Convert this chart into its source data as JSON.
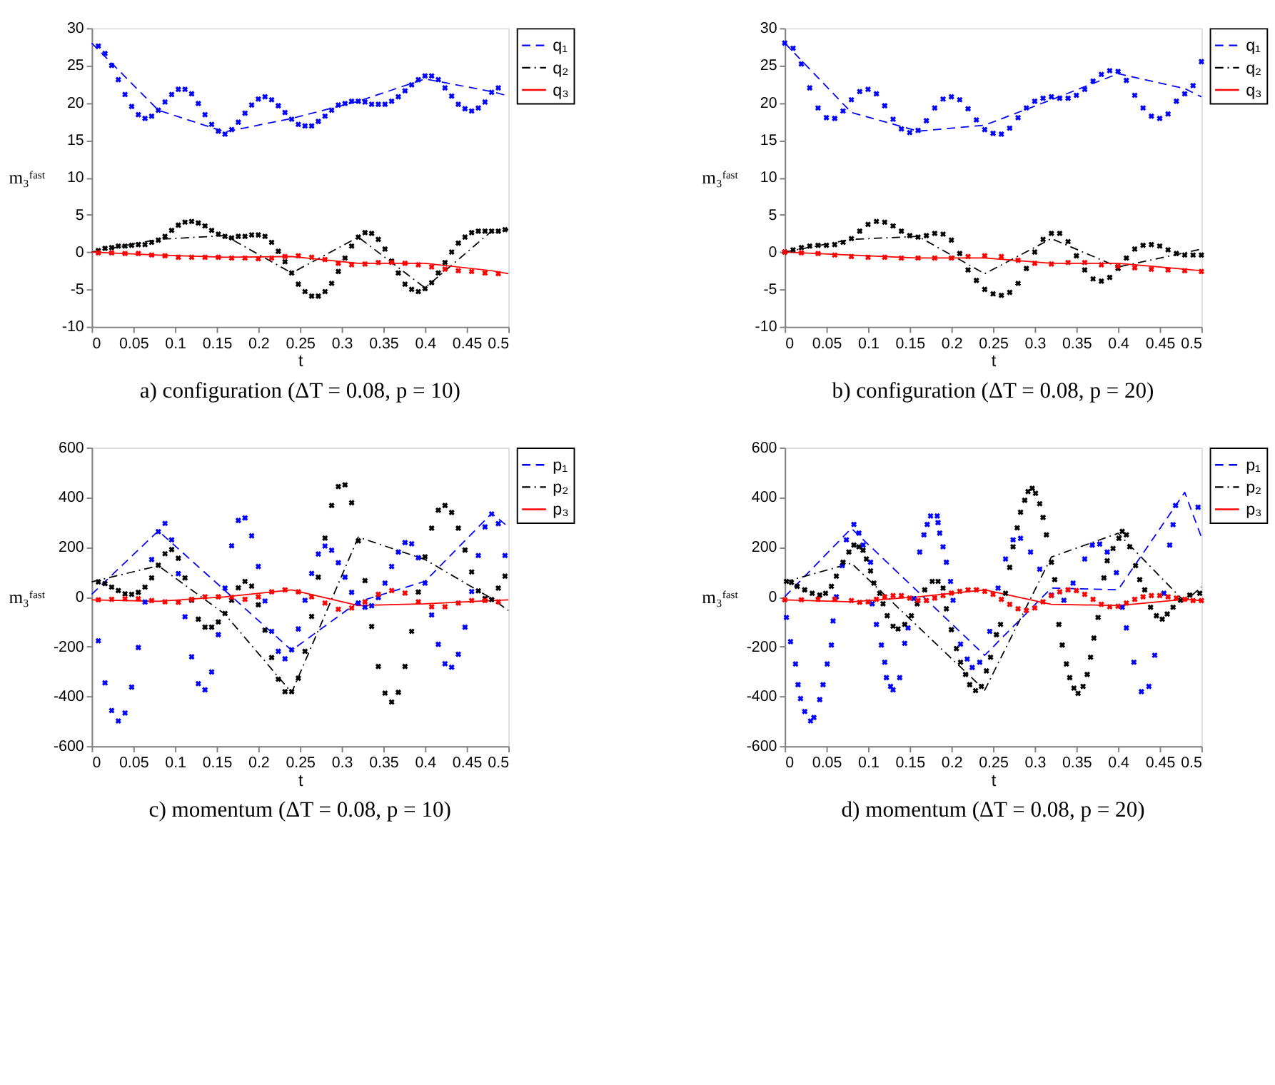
{
  "chart_data": [
    {
      "type": "line",
      "title": "a) configuration (ΔT = 0.08, p = 10)",
      "xlabel": "t",
      "ylabel": "m₃ᶠᵃˢᵗ",
      "xlim": [
        0,
        0.5
      ],
      "ylim": [
        -10,
        30
      ],
      "xticks": [
        0,
        0.05,
        0.1,
        0.15,
        0.2,
        0.25,
        0.3,
        0.35,
        0.4,
        0.45,
        0.5
      ],
      "yticks": [
        -10,
        -5,
        0,
        5,
        10,
        15,
        20,
        25,
        30
      ],
      "grid": false,
      "legend": "top right",
      "series": [
        {
          "type": "scatter",
          "marker": "cross",
          "color": "#0000ff",
          "x": [
            0.008,
            0.016,
            0.024,
            0.032,
            0.04,
            0.048,
            0.056,
            0.064,
            0.072,
            0.08,
            0.088,
            0.096,
            0.104,
            0.112,
            0.12,
            0.128,
            0.136,
            0.144,
            0.152,
            0.16,
            0.168,
            0.176,
            0.184,
            0.192,
            0.2,
            0.208,
            0.216,
            0.224,
            0.232,
            0.24,
            0.248,
            0.256,
            0.264,
            0.272,
            0.28,
            0.288,
            0.296,
            0.304,
            0.312,
            0.32,
            0.328,
            0.336,
            0.344,
            0.352,
            0.36,
            0.368,
            0.376,
            0.384,
            0.392,
            0.4,
            0.408,
            0.416,
            0.424,
            0.432,
            0.44,
            0.448,
            0.456,
            0.464,
            0.472,
            0.48,
            0.488
          ],
          "values": [
            27.6,
            26.6,
            25,
            23.1,
            21.1,
            19.5,
            18.4,
            17.9,
            18.2,
            19,
            20.1,
            21.1,
            21.8,
            21.8,
            21.2,
            19.9,
            18.4,
            17.1,
            16.2,
            15.8,
            16.4,
            17.4,
            18.6,
            19.7,
            20.5,
            20.8,
            20.4,
            19.6,
            18.7,
            17.8,
            17.1,
            16.9,
            16.9,
            17.5,
            18.2,
            19,
            19.7,
            19.9,
            20.2,
            20.2,
            20.1,
            19.8,
            19.8,
            19.8,
            20.2,
            20.8,
            21.6,
            22.4,
            23.1,
            23.6,
            23.6,
            23.1,
            22,
            20.9,
            19.8,
            19.2,
            18.9,
            19.3,
            20.1,
            21.4,
            22
          ]
        },
        {
          "type": "scatter",
          "marker": "cross",
          "color": "#000000",
          "x": [
            0.008,
            0.016,
            0.024,
            0.032,
            0.04,
            0.048,
            0.056,
            0.064,
            0.072,
            0.08,
            0.088,
            0.096,
            0.104,
            0.112,
            0.12,
            0.128,
            0.136,
            0.144,
            0.152,
            0.16,
            0.168,
            0.176,
            0.184,
            0.192,
            0.2,
            0.208,
            0.216,
            0.224,
            0.232,
            0.24,
            0.248,
            0.256,
            0.264,
            0.272,
            0.28,
            0.288,
            0.296,
            0.304,
            0.312,
            0.32,
            0.328,
            0.336,
            0.344,
            0.352,
            0.36,
            0.368,
            0.376,
            0.384,
            0.392,
            0.4,
            0.408,
            0.416,
            0.424,
            0.432,
            0.44,
            0.448,
            0.456,
            0.464,
            0.472,
            0.48,
            0.488,
            0.496
          ],
          "values": [
            0.2,
            0.5,
            0.6,
            0.8,
            0.8,
            0.9,
            1,
            1,
            1.3,
            1.6,
            2.1,
            2.9,
            3.6,
            4,
            4.1,
            3.9,
            3.5,
            2.9,
            2.4,
            2.1,
            1.9,
            2.1,
            2.1,
            2.3,
            2.3,
            2.1,
            1.3,
            0.1,
            -1.3,
            -2.8,
            -4.3,
            -5.3,
            -5.9,
            -5.9,
            -5.3,
            -4.2,
            -2.6,
            -0.8,
            0.8,
            2,
            2.6,
            2.5,
            1.7,
            0.4,
            -1.2,
            -2.8,
            -4.3,
            -5,
            -5.3,
            -4.9,
            -4.1,
            -2.8,
            -1.4,
            0,
            1.2,
            2,
            2.6,
            2.8,
            2.8,
            2.8,
            2.8,
            3
          ]
        },
        {
          "type": "scatter",
          "marker": "cross",
          "color": "#ff0000",
          "x": [
            0.008,
            0.024,
            0.04,
            0.056,
            0.072,
            0.088,
            0.104,
            0.12,
            0.136,
            0.152,
            0.168,
            0.184,
            0.2,
            0.216,
            0.232,
            0.248,
            0.264,
            0.28,
            0.296,
            0.312,
            0.328,
            0.344,
            0.36,
            0.376,
            0.392,
            0.408,
            0.424,
            0.44,
            0.456,
            0.472,
            0.488
          ],
          "values": [
            -0.1,
            -0.1,
            -0.2,
            -0.2,
            -0.4,
            -0.5,
            -0.7,
            -0.7,
            -0.7,
            -0.7,
            -0.8,
            -0.8,
            -0.9,
            -0.8,
            -0.6,
            -0.5,
            -0.7,
            -1,
            -1.5,
            -1.7,
            -1.6,
            -1.4,
            -1.4,
            -1.5,
            -1.7,
            -2,
            -2.3,
            -2.5,
            -2.6,
            -2.8,
            -2.9
          ]
        },
        {
          "type": "line",
          "name": "q₁",
          "color": "#0000ff",
          "line_style": "dashed",
          "marker": "none",
          "x": [
            0,
            0.08,
            0.16,
            0.24,
            0.32,
            0.4,
            0.48,
            0.5
          ],
          "values": [
            28,
            19,
            16.1,
            17.9,
            20.2,
            23.2,
            21.5,
            20.9
          ]
        },
        {
          "type": "line",
          "name": "q₂",
          "color": "#000000",
          "line_style": "dashdot",
          "marker": "none",
          "x": [
            0,
            0.08,
            0.16,
            0.24,
            0.32,
            0.4,
            0.48,
            0.5
          ],
          "values": [
            0,
            1.7,
            2.2,
            -2.8,
            2,
            -4.8,
            2.8,
            3
          ]
        },
        {
          "type": "line",
          "name": "q₃",
          "color": "#ff0000",
          "line_style": "solid",
          "marker": "none",
          "x": [
            0,
            0.08,
            0.16,
            0.24,
            0.32,
            0.4,
            0.48,
            0.5
          ],
          "values": [
            0,
            -0.4,
            -0.7,
            -0.6,
            -1.5,
            -1.5,
            -2.5,
            -2.9
          ]
        }
      ]
    },
    {
      "type": "line",
      "title": "b) configuration (ΔT = 0.08, p = 20)",
      "xlabel": "t",
      "ylabel": "m₃ᶠᵃˢᵗ",
      "xlim": [
        0,
        0.5
      ],
      "ylim": [
        -10,
        30
      ],
      "xticks": [
        0,
        0.05,
        0.1,
        0.15,
        0.2,
        0.25,
        0.3,
        0.35,
        0.4,
        0.45,
        0.5
      ],
      "yticks": [
        -10,
        -5,
        0,
        5,
        10,
        15,
        20,
        25,
        30
      ],
      "grid": false,
      "legend": "top right",
      "series": [
        {
          "type": "scatter",
          "marker": "cross",
          "color": "#0000ff",
          "x": [
            0,
            0.01,
            0.02,
            0.03,
            0.04,
            0.05,
            0.06,
            0.07,
            0.08,
            0.09,
            0.1,
            0.11,
            0.12,
            0.13,
            0.14,
            0.15,
            0.16,
            0.17,
            0.18,
            0.19,
            0.2,
            0.21,
            0.22,
            0.23,
            0.24,
            0.25,
            0.26,
            0.27,
            0.28,
            0.29,
            0.3,
            0.31,
            0.32,
            0.33,
            0.34,
            0.35,
            0.36,
            0.37,
            0.38,
            0.39,
            0.4,
            0.41,
            0.42,
            0.43,
            0.44,
            0.45,
            0.46,
            0.47,
            0.48,
            0.49,
            0.5
          ],
          "values": [
            28,
            27.3,
            25.2,
            22,
            19.3,
            18,
            17.9,
            18.9,
            20.4,
            21.5,
            21.8,
            21.2,
            19.6,
            17.8,
            16.5,
            16,
            16.3,
            17.6,
            19.3,
            20.5,
            20.8,
            20.4,
            19.2,
            17.7,
            16.4,
            15.9,
            15.8,
            16.6,
            18,
            19.3,
            20.2,
            20.6,
            20.8,
            20.6,
            20.6,
            21,
            21.8,
            22.9,
            23.8,
            24.3,
            24.2,
            23,
            21,
            19.3,
            18.2,
            17.9,
            18.5,
            20.2,
            21.2,
            22.3,
            25.5
          ]
        },
        {
          "type": "scatter",
          "marker": "cross",
          "color": "#000000",
          "x": [
            0,
            0.01,
            0.02,
            0.03,
            0.04,
            0.05,
            0.06,
            0.07,
            0.08,
            0.09,
            0.1,
            0.11,
            0.12,
            0.13,
            0.14,
            0.15,
            0.16,
            0.17,
            0.18,
            0.19,
            0.2,
            0.21,
            0.22,
            0.23,
            0.24,
            0.25,
            0.26,
            0.27,
            0.28,
            0.29,
            0.3,
            0.31,
            0.32,
            0.33,
            0.34,
            0.35,
            0.36,
            0.37,
            0.38,
            0.39,
            0.4,
            0.41,
            0.42,
            0.43,
            0.44,
            0.45,
            0.46,
            0.47,
            0.48,
            0.49,
            0.5
          ],
          "values": [
            0,
            0.3,
            0.6,
            0.8,
            0.9,
            0.9,
            1,
            1.3,
            1.8,
            2.8,
            3.7,
            4.1,
            4,
            3.5,
            2.8,
            2.2,
            2,
            2.2,
            2.5,
            2.4,
            1.6,
            -0.2,
            -2.4,
            -3.8,
            -5,
            -5.6,
            -5.8,
            -5.4,
            -4.2,
            -2.2,
            0,
            1.7,
            2.5,
            2.5,
            1.4,
            -0.5,
            -2.4,
            -3.6,
            -3.9,
            -3.4,
            -2.2,
            -0.8,
            0.4,
            0.9,
            1,
            0.8,
            0.3,
            -0.2,
            -0.4,
            -0.4,
            -0.4
          ]
        },
        {
          "type": "scatter",
          "marker": "cross",
          "color": "#ff0000",
          "x": [
            0,
            0.02,
            0.04,
            0.06,
            0.08,
            0.1,
            0.12,
            0.14,
            0.16,
            0.18,
            0.2,
            0.22,
            0.24,
            0.26,
            0.28,
            0.3,
            0.32,
            0.34,
            0.36,
            0.38,
            0.4,
            0.42,
            0.44,
            0.46,
            0.48,
            0.5
          ],
          "values": [
            0,
            -0.1,
            -0.2,
            -0.4,
            -0.6,
            -0.7,
            -0.7,
            -0.8,
            -0.8,
            -0.8,
            -0.8,
            -0.6,
            -0.5,
            -0.6,
            -1.1,
            -1.5,
            -1.6,
            -1.4,
            -1.4,
            -1.7,
            -1.9,
            -2.1,
            -2.3,
            -2.4,
            -2.5,
            -2.6
          ]
        },
        {
          "type": "line",
          "name": "q₁",
          "color": "#0000ff",
          "line_style": "dashed",
          "marker": "none",
          "x": [
            0,
            0.08,
            0.16,
            0.24,
            0.32,
            0.4,
            0.48,
            0.5
          ],
          "values": [
            28,
            18.7,
            16.2,
            17,
            20.4,
            23.9,
            21.9,
            20.8
          ]
        },
        {
          "type": "line",
          "name": "q₂",
          "color": "#000000",
          "line_style": "dashdot",
          "marker": "none",
          "x": [
            0,
            0.08,
            0.16,
            0.24,
            0.32,
            0.4,
            0.48,
            0.5
          ],
          "values": [
            0,
            1.7,
            2.1,
            -2.9,
            1.8,
            -2,
            -0.1,
            0.4
          ]
        },
        {
          "type": "line",
          "name": "q₃",
          "color": "#ff0000",
          "line_style": "solid",
          "marker": "none",
          "x": [
            0,
            0.08,
            0.16,
            0.24,
            0.32,
            0.4,
            0.48,
            0.5
          ],
          "values": [
            0,
            -0.4,
            -0.8,
            -0.8,
            -1.5,
            -1.5,
            -2.3,
            -2.5
          ]
        }
      ]
    },
    {
      "type": "line",
      "title": "c) momentum (ΔT = 0.08, p = 10)",
      "xlabel": "t",
      "ylabel": "m₃ᶠᵃˢᵗ",
      "xlim": [
        0,
        0.5
      ],
      "ylim": [
        -600,
        600
      ],
      "xticks": [
        0,
        0.05,
        0.1,
        0.15,
        0.2,
        0.25,
        0.3,
        0.35,
        0.4,
        0.45,
        0.5
      ],
      "yticks": [
        -600,
        -400,
        -200,
        0,
        200,
        400,
        600
      ],
      "grid": false,
      "legend": "top right",
      "series": [
        {
          "type": "scatter",
          "marker": "cross",
          "color": "#0000ff",
          "x": [
            0.008,
            0.016,
            0.024,
            0.032,
            0.04,
            0.048,
            0.056,
            0.064,
            0.072,
            0.08,
            0.088,
            0.096,
            0.104,
            0.112,
            0.12,
            0.128,
            0.136,
            0.144,
            0.152,
            0.16,
            0.168,
            0.176,
            0.184,
            0.192,
            0.2,
            0.208,
            0.216,
            0.224,
            0.232,
            0.24,
            0.248,
            0.256,
            0.264,
            0.272,
            0.28,
            0.288,
            0.296,
            0.304,
            0.312,
            0.32,
            0.328,
            0.336,
            0.344,
            0.352,
            0.36,
            0.368,
            0.376,
            0.384,
            0.392,
            0.4,
            0.408,
            0.416,
            0.424,
            0.432,
            0.44,
            0.448,
            0.456,
            0.464,
            0.472,
            0.48,
            0.488,
            0.496
          ],
          "values": [
            -177,
            -346,
            -457,
            -499,
            -467,
            -363,
            -204,
            -21,
            150,
            262,
            295,
            229,
            93,
            -80,
            -241,
            -349,
            -374,
            -302,
            -152,
            35,
            205,
            307,
            317,
            245,
            122,
            -17,
            -139,
            -219,
            -249,
            -213,
            -129,
            -14,
            94,
            172,
            204,
            187,
            137,
            79,
            18,
            -25,
            -42,
            -36,
            -3,
            55,
            122,
            180,
            218,
            213,
            157,
            55,
            -73,
            -191,
            -269,
            -283,
            -231,
            -122,
            21,
            166,
            281,
            333,
            294,
            166
          ]
        },
        {
          "type": "scatter",
          "marker": "cross",
          "color": "#000000",
          "x": [
            0.008,
            0.016,
            0.024,
            0.032,
            0.04,
            0.048,
            0.056,
            0.064,
            0.072,
            0.08,
            0.088,
            0.096,
            0.104,
            0.112,
            0.12,
            0.128,
            0.136,
            0.144,
            0.152,
            0.16,
            0.168,
            0.176,
            0.184,
            0.192,
            0.2,
            0.208,
            0.216,
            0.224,
            0.232,
            0.24,
            0.248,
            0.256,
            0.264,
            0.272,
            0.28,
            0.288,
            0.296,
            0.304,
            0.312,
            0.32,
            0.328,
            0.336,
            0.344,
            0.352,
            0.36,
            0.368,
            0.376,
            0.384,
            0.392,
            0.4,
            0.408,
            0.416,
            0.424,
            0.432,
            0.44,
            0.448,
            0.456,
            0.464,
            0.472,
            0.48,
            0.488,
            0.496
          ],
          "values": [
            60,
            53,
            39,
            25,
            12,
            10,
            18,
            39,
            76,
            127,
            173,
            190,
            155,
            76,
            -14,
            -90,
            -122,
            -122,
            -101,
            -67,
            -14,
            36,
            62,
            43,
            -32,
            -134,
            -244,
            -331,
            -381,
            -381,
            -327,
            -219,
            -79,
            79,
            236,
            367,
            443,
            450,
            378,
            225,
            65,
            -119,
            -280,
            -387,
            -423,
            -384,
            -280,
            -139,
            19,
            161,
            276,
            348,
            367,
            339,
            276,
            188,
            100,
            24,
            -7,
            -11,
            35,
            83
          ]
        },
        {
          "type": "scatter",
          "marker": "cross",
          "color": "#ff0000",
          "x": [
            0.008,
            0.024,
            0.04,
            0.056,
            0.072,
            0.088,
            0.104,
            0.12,
            0.136,
            0.152,
            0.168,
            0.184,
            0.2,
            0.216,
            0.232,
            0.248,
            0.264,
            0.28,
            0.296,
            0.312,
            0.328,
            0.344,
            0.36,
            0.376,
            0.392,
            0.408,
            0.424,
            0.44,
            0.456,
            0.472,
            0.488
          ],
          "values": [
            -12,
            -10,
            -8,
            -8,
            -15,
            -20,
            -22,
            -10,
            0,
            0,
            -2,
            -10,
            0,
            20,
            28,
            20,
            0,
            -25,
            -50,
            -45,
            -20,
            10,
            25,
            15,
            -20,
            -40,
            -40,
            -25,
            -15,
            -15,
            -20
          ]
        },
        {
          "type": "line",
          "name": "p₁",
          "color": "#0000ff",
          "line_style": "dashed",
          "marker": "none",
          "x": [
            0,
            0.08,
            0.16,
            0.24,
            0.32,
            0.4,
            0.48,
            0.5
          ],
          "values": [
            10,
            265,
            25,
            -215,
            -20,
            62,
            335,
            281
          ]
        },
        {
          "type": "line",
          "name": "p₂",
          "color": "#000000",
          "line_style": "dashdot",
          "marker": "none",
          "x": [
            0,
            0.08,
            0.16,
            0.24,
            0.32,
            0.4,
            0.48,
            0.5
          ],
          "values": [
            60,
            125,
            -70,
            -385,
            240,
            150,
            -7,
            -55
          ]
        },
        {
          "type": "line",
          "name": "p₃",
          "color": "#ff0000",
          "line_style": "solid",
          "marker": "none",
          "x": [
            0,
            0.08,
            0.16,
            0.24,
            0.32,
            0.4,
            0.48,
            0.5
          ],
          "values": [
            -12,
            -18,
            0,
            28,
            -35,
            -28,
            -15,
            -12
          ]
        }
      ]
    },
    {
      "type": "line",
      "title": "d) momentum (ΔT = 0.08, p = 20)",
      "xlabel": "t",
      "ylabel": "m₃ᶠᵃˢᵗ",
      "xlim": [
        0,
        0.5
      ],
      "ylim": [
        -600,
        600
      ],
      "xticks": [
        0,
        0.05,
        0.1,
        0.15,
        0.2,
        0.25,
        0.3,
        0.35,
        0.4,
        0.45,
        0.5
      ],
      "yticks": [
        -600,
        -400,
        -200,
        0,
        200,
        400,
        600
      ],
      "grid": false,
      "legend": "top right",
      "series": [
        {
          "type": "scatter",
          "marker": "cross",
          "color": "#0000ff",
          "x": [
            0.002,
            0.007,
            0.013,
            0.016,
            0.019,
            0.024,
            0.031,
            0.035,
            0.042,
            0.046,
            0.051,
            0.056,
            0.058,
            0.062,
            0.069,
            0.074,
            0.083,
            0.089,
            0.094,
            0.103,
            0.105,
            0.11,
            0.116,
            0.12,
            0.122,
            0.127,
            0.13,
            0.138,
            0.144,
            0.148,
            0.155,
            0.162,
            0.167,
            0.171,
            0.175,
            0.183,
            0.184,
            0.186,
            0.19,
            0.194,
            0.199,
            0.202,
            0.211,
            0.219,
            0.225,
            0.234,
            0.246,
            0.256,
            0.265,
            0.274,
            0.283,
            0.295,
            0.306,
            0.32,
            0.335,
            0.346,
            0.36,
            0.369,
            0.378,
            0.387,
            0.398,
            0.405,
            0.41,
            0.419,
            0.428,
            0.437,
            0.444,
            0.455,
            0.462,
            0.466,
            0.469,
            0.496
          ],
          "values": [
            -83,
            -180,
            -270,
            -353,
            -409,
            -461,
            -499,
            -485,
            -413,
            -353,
            -270,
            -194,
            -97,
            0,
            125,
            229,
            291,
            256,
            208,
            139,
            -28,
            -111,
            -194,
            -263,
            -325,
            -360,
            -374,
            -325,
            -187,
            -125,
            -7,
            180,
            249,
            291,
            325,
            325,
            298,
            256,
            201,
            139,
            62,
            -14,
            -190,
            -250,
            -284,
            -263,
            -139,
            35,
            152,
            229,
            235,
            180,
            111,
            7,
            -14,
            55,
            152,
            208,
            212,
            180,
            97,
            -42,
            -125,
            -263,
            -381,
            -360,
            -235,
            14,
            208,
            290,
            367,
            360
          ]
        },
        {
          "type": "scatter",
          "marker": "cross",
          "color": "#000000",
          "x": [
            0.002,
            0.008,
            0.015,
            0.024,
            0.033,
            0.042,
            0.049,
            0.056,
            0.062,
            0.07,
            0.077,
            0.083,
            0.089,
            0.094,
            0.098,
            0.103,
            0.107,
            0.114,
            0.118,
            0.123,
            0.13,
            0.136,
            0.144,
            0.152,
            0.159,
            0.168,
            0.177,
            0.184,
            0.19,
            0.194,
            0.2,
            0.206,
            0.211,
            0.217,
            0.222,
            0.229,
            0.236,
            0.242,
            0.247,
            0.254,
            0.259,
            0.265,
            0.27,
            0.274,
            0.279,
            0.283,
            0.288,
            0.292,
            0.297,
            0.301,
            0.306,
            0.31,
            0.314,
            0.32,
            0.324,
            0.329,
            0.333,
            0.338,
            0.342,
            0.347,
            0.352,
            0.358,
            0.363,
            0.367,
            0.371,
            0.376,
            0.383,
            0.387,
            0.394,
            0.401,
            0.405,
            0.41,
            0.414,
            0.421,
            0.426,
            0.432,
            0.439,
            0.446,
            0.453,
            0.459,
            0.466,
            0.475,
            0.486,
            0.498
          ],
          "values": [
            62,
            58,
            42,
            28,
            14,
            7,
            14,
            42,
            83,
            139,
            180,
            208,
            201,
            187,
            152,
            104,
            55,
            14,
            -28,
            -76,
            -118,
            -129,
            -111,
            -76,
            -28,
            28,
            62,
            62,
            35,
            -48,
            -132,
            -208,
            -263,
            -312,
            -353,
            -377,
            -360,
            -298,
            -243,
            -152,
            -111,
            14,
            118,
            201,
            277,
            340,
            388,
            423,
            436,
            416,
            374,
            319,
            249,
            139,
            69,
            -111,
            -194,
            -270,
            -325,
            -367,
            -388,
            -360,
            -312,
            -243,
            -166,
            -83,
            76,
            145,
            194,
            235,
            263,
            249,
            201,
            125,
            69,
            28,
            -42,
            -76,
            -90,
            -69,
            -42,
            -14,
            7,
            14
          ]
        },
        {
          "type": "scatter",
          "marker": "cross",
          "color": "#ff0000",
          "x": [
            0,
            0.02,
            0.04,
            0.06,
            0.08,
            0.09,
            0.1,
            0.11,
            0.12,
            0.13,
            0.14,
            0.15,
            0.16,
            0.17,
            0.18,
            0.19,
            0.2,
            0.21,
            0.22,
            0.23,
            0.24,
            0.25,
            0.26,
            0.27,
            0.28,
            0.29,
            0.3,
            0.31,
            0.32,
            0.33,
            0.34,
            0.35,
            0.36,
            0.37,
            0.38,
            0.39,
            0.4,
            0.41,
            0.42,
            0.43,
            0.44,
            0.45,
            0.46,
            0.47,
            0.48,
            0.49,
            0.5
          ],
          "values": [
            -12,
            -12,
            -10,
            -10,
            -15,
            -22,
            -20,
            -10,
            0,
            5,
            5,
            -5,
            -15,
            -15,
            -5,
            5,
            15,
            22,
            28,
            28,
            22,
            10,
            -10,
            -30,
            -48,
            -55,
            -45,
            -20,
            5,
            20,
            28,
            25,
            10,
            -10,
            -30,
            -40,
            -38,
            -25,
            -10,
            0,
            5,
            5,
            0,
            -5,
            -10,
            -15,
            -15
          ]
        },
        {
          "type": "line",
          "name": "p₁",
          "color": "#0000ff",
          "line_style": "dashed",
          "marker": "none",
          "x": [
            0,
            0.08,
            0.16,
            0.24,
            0.32,
            0.4,
            0.48,
            0.5
          ],
          "values": [
            0,
            275,
            20,
            -235,
            35,
            28,
            420,
            240
          ]
        },
        {
          "type": "line",
          "name": "p₂",
          "color": "#000000",
          "line_style": "dashdot",
          "marker": "none",
          "x": [
            0,
            0.08,
            0.16,
            0.24,
            0.32,
            0.4,
            0.48,
            0.5
          ],
          "values": [
            60,
            135,
            -120,
            -375,
            160,
            255,
            -20,
            40
          ]
        },
        {
          "type": "line",
          "name": "p₃",
          "color": "#ff0000",
          "line_style": "solid",
          "marker": "none",
          "x": [
            0,
            0.08,
            0.16,
            0.24,
            0.32,
            0.4,
            0.48,
            0.5
          ],
          "values": [
            -12,
            -20,
            0,
            28,
            -30,
            -35,
            -10,
            -15
          ]
        }
      ]
    }
  ]
}
